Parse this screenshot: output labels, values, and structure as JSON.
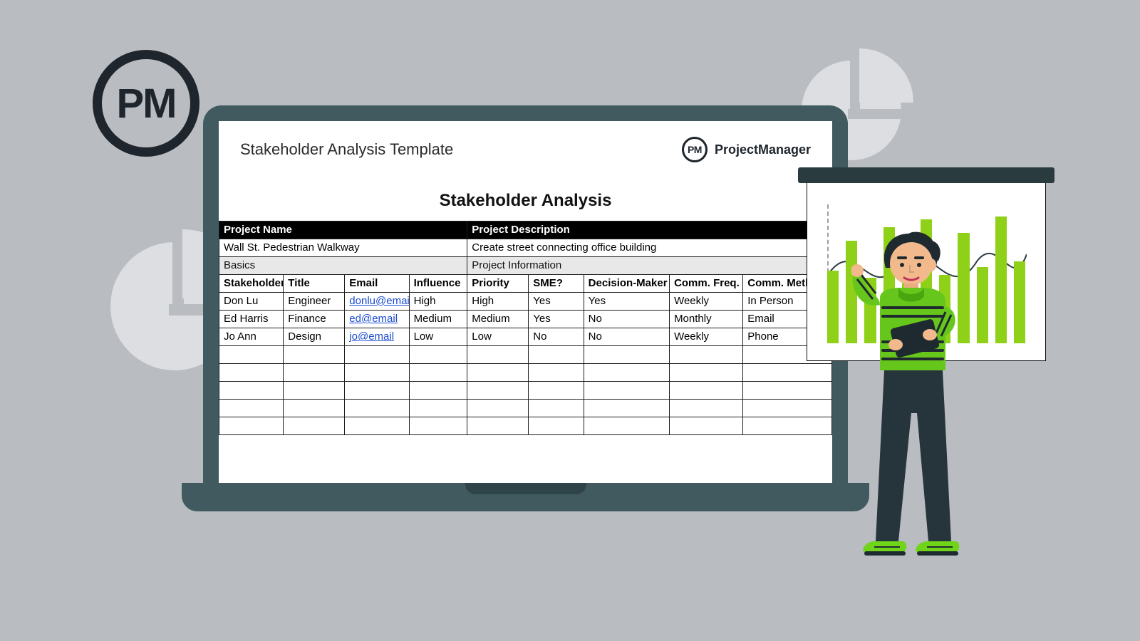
{
  "badge": {
    "text": "PM"
  },
  "brand": {
    "icon_text": "PM",
    "name": "ProjectManager"
  },
  "doc": {
    "template_title": "Stakeholder Analysis Template",
    "heading": "Stakeholder Analysis",
    "project_header": {
      "name_label": "Project Name",
      "desc_label": "Project Description"
    },
    "project": {
      "name": "Wall St. Pedestrian Walkway",
      "description": "Create street connecting office building"
    },
    "section_labels": {
      "basics": "Basics",
      "info": "Project Information"
    },
    "columns": [
      "Stakeholder",
      "Title",
      "Email",
      "Influence",
      "Priority",
      "SME?",
      "Decision-Maker",
      "Comm. Freq.",
      "Comm. Method"
    ],
    "col_widths_pct": [
      10.5,
      10,
      10.5,
      9.5,
      10,
      9,
      14,
      12,
      14.5
    ],
    "rows": [
      {
        "stakeholder": "Don Lu",
        "title": "Engineer",
        "email": "donlu@email",
        "influence": "High",
        "priority": "High",
        "sme": "Yes",
        "dm": "Yes",
        "freq": "Weekly",
        "method": "In Person"
      },
      {
        "stakeholder": "Ed Harris",
        "title": "Finance",
        "email": "ed@email",
        "influence": "Medium",
        "priority": "Medium",
        "sme": "Yes",
        "dm": "No",
        "freq": "Monthly",
        "method": "Email"
      },
      {
        "stakeholder": "Jo Ann",
        "title": "Design",
        "email": "jo@email",
        "influence": "Low",
        "priority": "Low",
        "sme": "No",
        "dm": "No",
        "freq": "Weekly",
        "method": "Phone"
      }
    ],
    "empty_rows": 5
  },
  "chart": {
    "bar_color": "#8fd118",
    "heights_pct": [
      55,
      78,
      50,
      88,
      60,
      94,
      52,
      84,
      58,
      96,
      62
    ],
    "wave_stroke": "#2a3b40"
  },
  "colors": {
    "page_bg": "#b9bcc1",
    "pie_fill": "#dcdee2",
    "bezel": "#405a60",
    "ink": "#1e252c",
    "link": "#1a4bd1"
  }
}
